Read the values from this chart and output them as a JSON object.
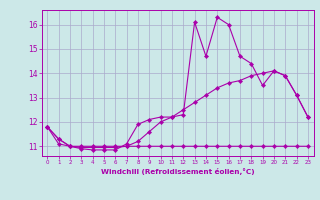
{
  "xlabel": "Windchill (Refroidissement éolien,°C)",
  "background_color": "#cce8e8",
  "grid_color": "#aaaacc",
  "line_color": "#aa00aa",
  "x_values": [
    0,
    1,
    2,
    3,
    4,
    5,
    6,
    7,
    8,
    9,
    10,
    11,
    12,
    13,
    14,
    15,
    16,
    17,
    18,
    19,
    20,
    21,
    22,
    23
  ],
  "line1": [
    11.8,
    11.3,
    11.0,
    10.9,
    10.85,
    10.85,
    10.85,
    11.1,
    11.9,
    12.1,
    12.2,
    12.2,
    12.3,
    16.1,
    14.7,
    16.3,
    16.0,
    14.7,
    14.4,
    13.5,
    14.1,
    13.9,
    13.1,
    12.2
  ],
  "line2": [
    11.8,
    11.3,
    11.0,
    10.95,
    10.95,
    10.95,
    10.95,
    11.0,
    11.2,
    11.6,
    12.0,
    12.2,
    12.5,
    12.8,
    13.1,
    13.4,
    13.6,
    13.7,
    13.9,
    14.0,
    14.1,
    13.9,
    13.1,
    12.2
  ],
  "line3": [
    11.8,
    11.1,
    11.0,
    11.0,
    11.0,
    11.0,
    11.0,
    11.0,
    11.0,
    11.0,
    11.0,
    11.0,
    11.0,
    11.0,
    11.0,
    11.0,
    11.0,
    11.0,
    11.0,
    11.0,
    11.0,
    11.0,
    11.0,
    11.0
  ],
  "ylim": [
    10.6,
    16.6
  ],
  "xlim": [
    -0.5,
    23.5
  ],
  "yticks": [
    11,
    12,
    13,
    14,
    15,
    16
  ],
  "xticks": [
    0,
    1,
    2,
    3,
    4,
    5,
    6,
    7,
    8,
    9,
    10,
    11,
    12,
    13,
    14,
    15,
    16,
    17,
    18,
    19,
    20,
    21,
    22,
    23
  ]
}
